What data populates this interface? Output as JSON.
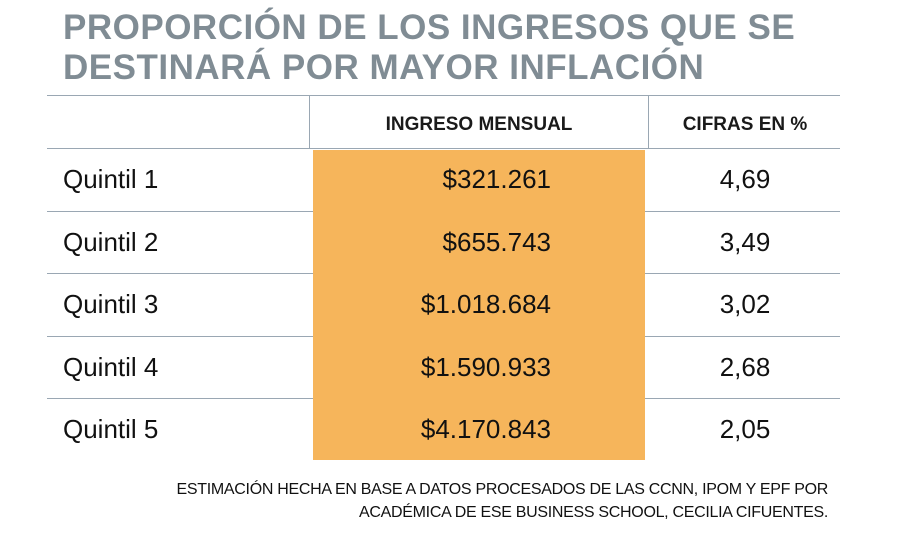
{
  "header": {
    "title_lines": [
      "PROPORCIÓN DE LOS INGRESOS QUE SE",
      "DESTINARÁ POR MAYOR INFLACIÓN"
    ]
  },
  "table": {
    "columns": [
      "INGRESO MENSUAL",
      "CIFRAS EN %"
    ],
    "rows": [
      [
        "Quintil 1",
        "$321.261",
        "4,69"
      ],
      [
        "Quintil 2",
        "$655.743",
        "3,49"
      ],
      [
        "Quintil 3",
        "$1.018.684",
        "3,02"
      ],
      [
        "Quintil 4",
        "$1.590.933",
        "2,68"
      ],
      [
        "Quintil 5",
        "$4.170.843",
        "2,05"
      ]
    ]
  },
  "footnote": {
    "lines": [
      "ESTIMACIÓN HECHA EN BASE A DATOS PROCESADOS DE LAS CCNN, IPOM Y EPF POR",
      "ACADÉMICA DE ESE BUSINESS SCHOOL, CECILIA CIFUENTES."
    ]
  }
}
